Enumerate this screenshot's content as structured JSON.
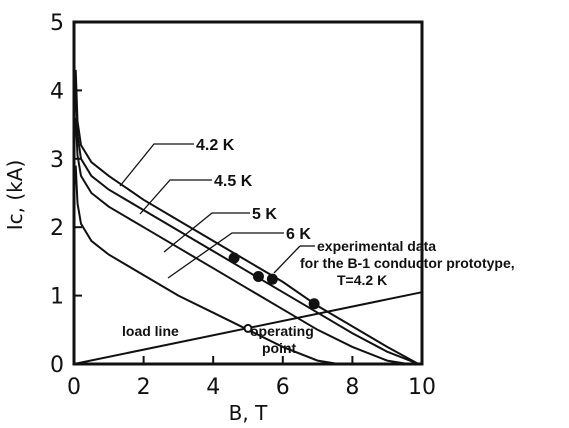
{
  "chart_data": {
    "type": "line",
    "xlabel": "B, T",
    "ylabel": "Ic, (kA)",
    "xlim": [
      0,
      10
    ],
    "ylim": [
      0,
      5
    ],
    "xticks": [
      0,
      2,
      4,
      6,
      8,
      10
    ],
    "yticks": [
      0,
      1,
      2,
      3,
      4,
      5
    ],
    "grid": false,
    "series": [
      {
        "name": "4.2 K",
        "x": [
          0.05,
          0.1,
          0.2,
          0.5,
          1,
          2,
          3,
          4,
          5,
          6,
          7,
          8,
          9,
          9.9
        ],
        "y": [
          4.3,
          3.55,
          3.2,
          2.95,
          2.75,
          2.4,
          2.1,
          1.8,
          1.5,
          1.2,
          0.85,
          0.55,
          0.25,
          0.0
        ]
      },
      {
        "name": "4.5 K",
        "x": [
          0.05,
          0.1,
          0.2,
          0.5,
          1,
          2,
          3,
          4,
          5,
          6,
          7,
          8,
          9,
          9.9
        ],
        "y": [
          4.0,
          3.35,
          3.0,
          2.75,
          2.55,
          2.25,
          1.95,
          1.65,
          1.35,
          1.05,
          0.75,
          0.45,
          0.18,
          0.0
        ]
      },
      {
        "name": "5 K",
        "x": [
          0.05,
          0.1,
          0.2,
          0.5,
          1,
          2,
          3,
          4,
          5,
          6,
          7,
          8,
          9,
          9.6
        ],
        "y": [
          3.6,
          3.05,
          2.75,
          2.5,
          2.3,
          2.0,
          1.7,
          1.4,
          1.1,
          0.8,
          0.5,
          0.25,
          0.05,
          0.0
        ]
      },
      {
        "name": "6 K",
        "x": [
          0.05,
          0.1,
          0.2,
          0.5,
          1,
          2,
          3,
          4,
          5,
          6,
          7,
          7.6
        ],
        "y": [
          2.9,
          2.35,
          2.05,
          1.8,
          1.6,
          1.3,
          1.0,
          0.75,
          0.5,
          0.25,
          0.05,
          0.0
        ]
      },
      {
        "name": "load line",
        "x": [
          0,
          10
        ],
        "y": [
          0,
          1.05
        ]
      }
    ],
    "experimental_points": {
      "x": [
        4.6,
        5.3,
        5.7,
        6.9
      ],
      "y": [
        1.55,
        1.28,
        1.24,
        0.88
      ]
    },
    "operating_point": {
      "x": 5.0,
      "y": 0.52
    },
    "annotations": {
      "curve_4_2": "4.2 K",
      "curve_4_5": "4.5 K",
      "curve_5": "5 K",
      "curve_6": "6 K",
      "experimental_line1": "experimental data",
      "experimental_line2": "for the B-1 conductor prototype,",
      "experimental_line3": "T=4.2 K",
      "load_line": "load line",
      "operating_line1": "operating",
      "operating_line2": "point"
    }
  }
}
